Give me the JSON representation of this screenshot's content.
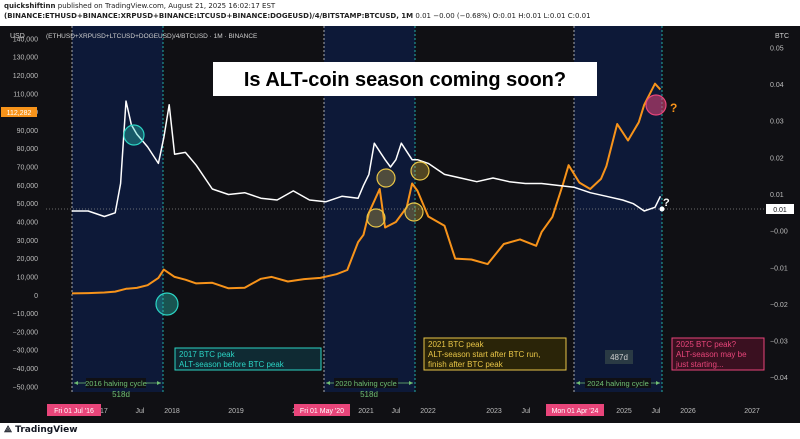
{
  "header": {
    "author": "quickshiftinn",
    "published": "published on TradingView.com, August 21, 2025 16:02:17 EST",
    "symbol": "(BINANCE:ETHUSD+BINANCE:XRPUSD+BINANCE:LTCUSD+BINANCE:DOGEUSD)/4/BITSTAMP:BTCUSD, 1M",
    "ohlc": "0.01 −0.00 (−0.68%)  O:0.01  H:0.01  L:0.01  C:0.01"
  },
  "chart": {
    "left_scale_label": "USD",
    "right_scale_label": "BTC",
    "legend_line": "(ETHUSD+XRPUSD+LTCUSD+DOGEUSD)/4/BTCUSD · 1M · BINANCE",
    "title": "Is ALT-coin season coming soon?",
    "btc_price_tag": "112,282",
    "ratio_tag": "0.01",
    "bg_color": "#101014",
    "btc_color": "#f7931a",
    "ratio_color": "#ffffff"
  },
  "annotations": {
    "a2017": {
      "l1": "2017 BTC peak",
      "l2": "ALT-season before BTC peak"
    },
    "a2021": {
      "l1": "2021 BTC peak",
      "l2": "ALT-season start after BTC run,",
      "l3": "finish after BTC peak"
    },
    "a2025": {
      "l1": "2025 BTC peak?",
      "l2": "ALT-season may be",
      "l3": "just starting..."
    },
    "cycle2016": "2016 halving cycle",
    "cycle2020": "2020 halving cycle",
    "cycle2024": "2024 halving cycle",
    "d518a": "518d",
    "d518b": "518d",
    "d487": "487d",
    "q1": "?",
    "q2": "?"
  },
  "xaxis": {
    "date_tags": [
      "Fri 01 Jul '16",
      "Fri 01 May '20",
      "Mon 01 Apr '24"
    ],
    "labels": [
      "2017",
      "Jul",
      "2018",
      "2019",
      "2020",
      "2021",
      "Jul",
      "2022",
      "2023",
      "Jul",
      "2025",
      "Jul",
      "2026",
      "2027"
    ]
  },
  "footer": {
    "brand": "TradingView"
  },
  "chart_data": {
    "type": "line",
    "title": "Is ALT-coin season coming soon?",
    "left_axis": {
      "ticks": [
        "140,000",
        "130,000",
        "120,000",
        "110,000",
        "100,000",
        "90,000",
        "80,000",
        "70,000",
        "60,000",
        "50,000",
        "40,000",
        "30,000",
        "20,000",
        "10,000",
        "0",
        "−10,000",
        "−20,000",
        "−30,000",
        "−40,000",
        "−50,000"
      ],
      "range": [
        -55000,
        147000
      ]
    },
    "right_axis": {
      "ticks": [
        "0.05",
        "0.04",
        "0.03",
        "0.02",
        "0.01",
        "−0.00",
        "−0.01",
        "−0.02",
        "−0.03",
        "−0.04"
      ],
      "range": [
        -0.045,
        0.056
      ]
    },
    "series": [
      {
        "axis": "left",
        "x": [
          "2016-07",
          "2016-10",
          "2017-01",
          "2017-03",
          "2017-05",
          "2017-07",
          "2017-09",
          "2017-11",
          "2017-12",
          "2018-02",
          "2018-04",
          "2018-06",
          "2018-09",
          "2018-12",
          "2019-03",
          "2019-06",
          "2019-08",
          "2019-11",
          "2020-02",
          "2020-05",
          "2020-08",
          "2020-10",
          "2020-12",
          "2021-01",
          "2021-02",
          "2021-04",
          "2021-05",
          "2021-07",
          "2021-09",
          "2021-10",
          "2021-11",
          "2022-01",
          "2022-04",
          "2022-06",
          "2022-09",
          "2022-12",
          "2023-03",
          "2023-06",
          "2023-09",
          "2023-10",
          "2023-12",
          "2024-02",
          "2024-03",
          "2024-05",
          "2024-07",
          "2024-09",
          "2024-10",
          "2024-12",
          "2025-02",
          "2025-04",
          "2025-05",
          "2025-07",
          "2025-08"
        ],
        "values": [
          1000,
          1200,
          1500,
          2000,
          3500,
          4000,
          5500,
          9500,
          14000,
          10000,
          8500,
          6500,
          6800,
          3800,
          4100,
          9000,
          10000,
          7500,
          8800,
          9500,
          11500,
          13800,
          29000,
          33000,
          45000,
          58000,
          37000,
          40000,
          48000,
          61000,
          57000,
          43000,
          38000,
          20000,
          19500,
          17000,
          28000,
          30500,
          27000,
          34500,
          42800,
          61000,
          71000,
          61500,
          58000,
          63500,
          70500,
          93500,
          84500,
          94500,
          104000,
          115500,
          112300
        ]
      },
      {
        "axis": "right",
        "x": [
          "2016-07",
          "2016-10",
          "2017-01",
          "2017-03",
          "2017-04",
          "2017-05",
          "2017-06",
          "2017-07",
          "2017-09",
          "2017-11",
          "2017-12",
          "2018-01",
          "2018-02",
          "2018-04",
          "2018-06",
          "2018-09",
          "2018-12",
          "2019-03",
          "2019-06",
          "2019-09",
          "2019-12",
          "2020-03",
          "2020-06",
          "2020-09",
          "2020-12",
          "2021-01",
          "2021-02",
          "2021-03",
          "2021-05",
          "2021-06",
          "2021-07",
          "2021-08",
          "2021-10",
          "2021-11",
          "2022-01",
          "2022-04",
          "2022-07",
          "2022-10",
          "2023-01",
          "2023-04",
          "2023-07",
          "2023-10",
          "2024-01",
          "2024-04",
          "2024-07",
          "2024-10",
          "2025-01",
          "2025-03",
          "2025-05",
          "2025-07",
          "2025-08"
        ],
        "values": [
          0.0055,
          0.0055,
          0.004,
          0.005,
          0.013,
          0.0355,
          0.029,
          0.0265,
          0.023,
          0.0185,
          0.0255,
          0.0345,
          0.021,
          0.0215,
          0.018,
          0.0115,
          0.01,
          0.0105,
          0.009,
          0.0085,
          0.011,
          0.0085,
          0.008,
          0.0095,
          0.009,
          0.0125,
          0.0155,
          0.024,
          0.0195,
          0.0175,
          0.0195,
          0.024,
          0.0195,
          0.0195,
          0.0185,
          0.0155,
          0.0145,
          0.0135,
          0.0145,
          0.0135,
          0.013,
          0.013,
          0.0125,
          0.012,
          0.0105,
          0.0095,
          0.0085,
          0.0075,
          0.0055,
          0.0065,
          0.0095
        ]
      }
    ]
  }
}
